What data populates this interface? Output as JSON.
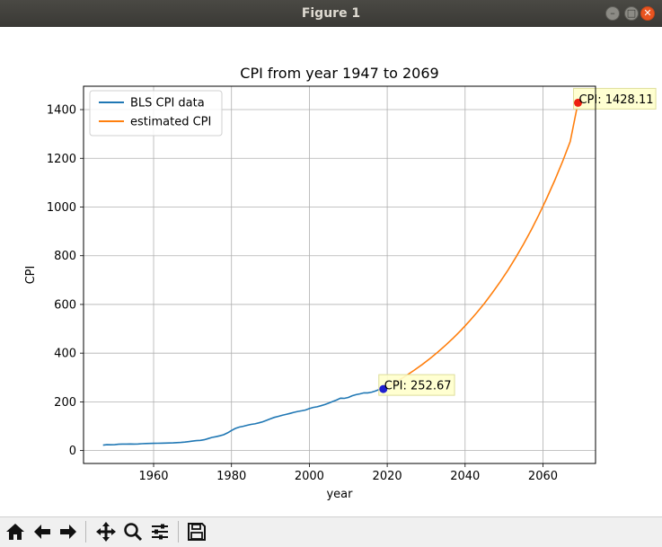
{
  "window": {
    "title": "Figure 1",
    "buttons": [
      "minimize",
      "maximize",
      "close"
    ]
  },
  "toolbar": {
    "buttons": [
      {
        "name": "home-icon",
        "label": "Home"
      },
      {
        "name": "back-icon",
        "label": "Back"
      },
      {
        "name": "forward-icon",
        "label": "Forward"
      },
      {
        "name": "pan-icon",
        "label": "Pan"
      },
      {
        "name": "zoom-icon",
        "label": "Zoom"
      },
      {
        "name": "configure-subplots-icon",
        "label": "Subplots"
      },
      {
        "name": "save-icon",
        "label": "Save"
      }
    ]
  },
  "chart_data": {
    "type": "line",
    "title": "CPI from year 1947 to 2069",
    "xlabel": "year",
    "ylabel": "CPI",
    "xlim": [
      1942,
      2073.5
    ],
    "ylim": [
      -53,
      1496
    ],
    "xticks": [
      1960,
      1980,
      2000,
      2020,
      2040,
      2060
    ],
    "yticks": [
      0,
      200,
      400,
      600,
      800,
      1000,
      1200,
      1400
    ],
    "grid": true,
    "legend_position": "top-left",
    "series": [
      {
        "name": "BLS CPI data",
        "color": "#1f77b4",
        "x": [
          1947,
          1948,
          1949,
          1950,
          1951,
          1952,
          1953,
          1954,
          1955,
          1956,
          1957,
          1958,
          1959,
          1960,
          1961,
          1962,
          1963,
          1964,
          1965,
          1966,
          1967,
          1968,
          1969,
          1970,
          1971,
          1972,
          1973,
          1974,
          1975,
          1976,
          1977,
          1978,
          1979,
          1980,
          1981,
          1982,
          1983,
          1984,
          1985,
          1986,
          1987,
          1988,
          1989,
          1990,
          1991,
          1992,
          1993,
          1994,
          1995,
          1996,
          1997,
          1998,
          1999,
          2000,
          2001,
          2002,
          2003,
          2004,
          2005,
          2006,
          2007,
          2008,
          2009,
          2010,
          2011,
          2012,
          2013,
          2014,
          2015,
          2016,
          2017,
          2018,
          2019
        ],
        "y": [
          22.3,
          24.1,
          23.8,
          24.1,
          26.0,
          26.5,
          26.7,
          26.9,
          26.8,
          27.2,
          28.1,
          28.9,
          29.1,
          29.6,
          29.9,
          30.2,
          30.6,
          31.0,
          31.5,
          32.4,
          33.4,
          34.8,
          36.7,
          38.8,
          40.5,
          41.8,
          44.4,
          49.3,
          53.8,
          56.9,
          60.6,
          65.2,
          72.6,
          82.4,
          90.9,
          96.5,
          99.6,
          103.9,
          107.6,
          109.6,
          113.6,
          118.3,
          124.0,
          130.7,
          136.2,
          140.3,
          144.5,
          148.2,
          152.4,
          156.9,
          160.5,
          163.0,
          166.6,
          172.2,
          177.1,
          179.9,
          184.0,
          188.9,
          195.3,
          201.6,
          207.3,
          215.3,
          214.5,
          218.1,
          224.9,
          229.6,
          233.0,
          236.7,
          237.0,
          240.0,
          245.1,
          251.1,
          252.67
        ]
      },
      {
        "name": "estimated CPI",
        "color": "#ff7f0e",
        "x": [
          2019,
          2021,
          2023,
          2025,
          2027,
          2029,
          2031,
          2033,
          2035,
          2037,
          2039,
          2041,
          2043,
          2045,
          2047,
          2049,
          2051,
          2053,
          2055,
          2057,
          2059,
          2061,
          2063,
          2065,
          2067,
          2069
        ],
        "y": [
          252.67,
          270.2,
          289.0,
          309.1,
          330.6,
          353.6,
          378.2,
          404.5,
          432.6,
          462.7,
          494.9,
          529.3,
          566.1,
          605.5,
          647.6,
          692.6,
          740.8,
          792.3,
          847.4,
          906.3,
          969.4,
          1036.8,
          1108.9,
          1186.0,
          1268.5,
          1428.11
        ]
      }
    ],
    "annotations": [
      {
        "text": "CPI: 252.67",
        "x": 2019,
        "y": 252.67,
        "marker_color": "#1f1fd0"
      },
      {
        "text": "CPI: 1428.11",
        "x": 2069,
        "y": 1428.11,
        "marker_color": "#ee2211"
      }
    ]
  }
}
